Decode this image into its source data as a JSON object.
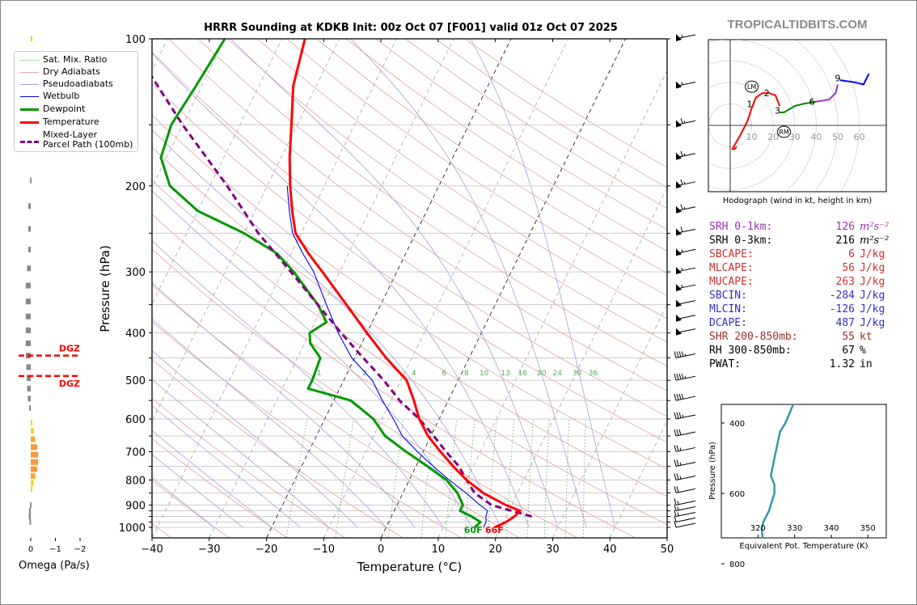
{
  "header": {
    "title": "HRRR Sounding at KDKB Init: 00z Oct 07 [F001] valid 01z Oct 07 2025",
    "brand": "TROPICALTIDBITS.COM"
  },
  "colors": {
    "temperature": "#ff0000",
    "dewpoint": "#009900",
    "wetbulb": "#0000ee",
    "parcel": "#800080",
    "dry_adiabat": "#e8a0a0",
    "pseudoadiabat": "#a0a0e0",
    "mix_ratio": "#5aa85a",
    "isotherm": "#999999",
    "theta_e": "#3399aa"
  },
  "legend": {
    "items": [
      {
        "label": "Sat. Mix. Ratio",
        "style": "dotted",
        "color": "#5aa85a"
      },
      {
        "label": "Dry Adiabats",
        "style": "thin",
        "color": "#e8a0a0"
      },
      {
        "label": "Pseudoadiabats",
        "style": "thin",
        "color": "#a0a0e0"
      },
      {
        "label": "Wetbulb",
        "style": "thin",
        "color": "#0000ee"
      },
      {
        "label": "Dewpoint",
        "style": "thick",
        "color": "#009900"
      },
      {
        "label": "Temperature",
        "style": "thick",
        "color": "#ff0000"
      },
      {
        "label": "Mixed-Layer",
        "label2": "Parcel Path (100mb)",
        "style": "dashed",
        "color": "#800080"
      }
    ]
  },
  "stats": [
    {
      "label": "SRH 0-1km:",
      "value": "126",
      "unit": "m²s⁻²",
      "color": "#9b30b0"
    },
    {
      "label": "SRH 0-3km:",
      "value": "216",
      "unit": "m²s⁻²",
      "color": "#000000"
    },
    {
      "label": "SBCAPE:",
      "value": "6",
      "unit": "J/kg",
      "color": "#d03030"
    },
    {
      "label": "MLCAPE:",
      "value": "56",
      "unit": "J/kg",
      "color": "#d03030"
    },
    {
      "label": "MUCAPE:",
      "value": "263",
      "unit": "J/kg",
      "color": "#d03030"
    },
    {
      "label": "SBCIN:",
      "value": "-284",
      "unit": "J/kg",
      "color": "#3030c8"
    },
    {
      "label": "MLCIN:",
      "value": "-126",
      "unit": "J/kg",
      "color": "#3030c8"
    },
    {
      "label": "DCAPE:",
      "value": "487",
      "unit": "J/kg",
      "color": "#3030c8"
    },
    {
      "label": "SHR 200-850mb:",
      "value": "55",
      "unit": "kt",
      "color": "#a03030"
    },
    {
      "label": "RH 300-850mb:",
      "value": "67",
      "unit": "%",
      "color": "#000000"
    },
    {
      "label": "PWAT:",
      "value": "1.32",
      "unit": "in",
      "color": "#000000"
    }
  ],
  "chart_data": [
    {
      "type": "line",
      "name": "skew-t",
      "title": "HRRR Sounding at KDKB Init: 00z Oct 07 [F001] valid 01z Oct 07 2025",
      "xlabel": "Temperature (°C)",
      "ylabel": "Pressure (hPa)",
      "xlim": [
        -40,
        50
      ],
      "ylim": [
        1050,
        100
      ],
      "xticks": [
        -40,
        -30,
        -20,
        -10,
        0,
        10,
        20,
        30,
        40,
        50
      ],
      "xtick_labels": [
        "−40",
        "−30",
        "−20",
        "−10",
        "0",
        "10",
        "20",
        "30",
        "40",
        "50"
      ],
      "yticks": [
        100,
        200,
        300,
        400,
        500,
        600,
        700,
        800,
        900,
        1000
      ],
      "ytick_labels": [
        "100",
        "200",
        "300",
        "400",
        "500",
        "600",
        "700",
        "800",
        "900",
        "1000"
      ],
      "minor_pressure_lines": [
        150,
        250,
        350,
        450,
        550,
        650,
        750,
        850,
        925,
        950,
        975
      ],
      "mix_ratio_labels": [
        "1",
        "2",
        "4",
        "6",
        "8",
        "10",
        "13",
        "16",
        "20",
        "24",
        "30",
        "36"
      ],
      "mix_ratio_values": [
        1,
        2,
        4,
        6,
        8,
        10,
        13,
        16,
        20,
        24,
        30,
        36
      ],
      "surface_labels": {
        "dewpoint": "60F",
        "temperature": "66F"
      },
      "series": [
        {
          "name": "Temperature",
          "pressure": [
            1000,
            975,
            950,
            925,
            900,
            850,
            800,
            750,
            700,
            650,
            600,
            550,
            500,
            450,
            400,
            350,
            300,
            275,
            250,
            225,
            200,
            175,
            150,
            125,
            100
          ],
          "temp": [
            19,
            20.5,
            21.5,
            22,
            19,
            14,
            10,
            6.5,
            3,
            -0.5,
            -3.5,
            -6,
            -9,
            -14.5,
            -20,
            -26,
            -33,
            -37,
            -41,
            -43.5,
            -46,
            -48.5,
            -51,
            -54,
            -56
          ]
        },
        {
          "name": "Dewpoint",
          "pressure": [
            1000,
            975,
            950,
            925,
            900,
            850,
            800,
            750,
            700,
            650,
            600,
            550,
            520,
            500,
            450,
            420,
            400,
            380,
            350,
            300,
            275,
            250,
            225,
            200,
            175,
            150,
            125,
            100
          ],
          "temp": [
            15.5,
            16,
            14,
            11.5,
            11.5,
            9.5,
            6.5,
            2,
            -3,
            -8,
            -11.5,
            -17,
            -25.5,
            -25.5,
            -26,
            -29,
            -30,
            -28,
            -31,
            -38,
            -42.5,
            -50,
            -60,
            -67,
            -71,
            -72,
            -71,
            -70
          ]
        },
        {
          "name": "Wetbulb",
          "pressure": [
            1000,
            975,
            950,
            925,
            900,
            850,
            800,
            750,
            700,
            650,
            600,
            550,
            500,
            450,
            400,
            350,
            300,
            275,
            250,
            225,
            200
          ],
          "temp": [
            17,
            17,
            16.5,
            16.3,
            14.5,
            11,
            7,
            3,
            -1,
            -5,
            -8,
            -11.5,
            -15,
            -20.5,
            -25,
            -29.5,
            -34.5,
            -38,
            -41.5,
            -44,
            -46.5
          ]
        },
        {
          "name": "Mixed-Layer Parcel Path (100mb)",
          "pressure": [
            950,
            925,
            900,
            850,
            800,
            750,
            700,
            650,
            600,
            550,
            500,
            450,
            400,
            350,
            300,
            250,
            200,
            150,
            100
          ],
          "temp": [
            24.5,
            20.5,
            16.5,
            12.5,
            10,
            7.5,
            4,
            0.5,
            -3.5,
            -8.5,
            -13,
            -18.5,
            -24.5,
            -31,
            -38.5,
            -47.5,
            -57,
            -70,
            -87
          ]
        }
      ]
    },
    {
      "type": "bar",
      "name": "omega",
      "xlabel": "Omega (Pa/s)",
      "xticks": [
        0,
        -1,
        -2
      ],
      "xtick_labels": [
        "0",
        "−1",
        "−2"
      ],
      "dgz_label": "DGZ",
      "dgz_pressures": [
        445,
        490
      ],
      "pressure": [
        100,
        125,
        195,
        220,
        245,
        270,
        295,
        320,
        345,
        370,
        395,
        420,
        445,
        470,
        495,
        520,
        545,
        570,
        610,
        635,
        660,
        685,
        710,
        735,
        760,
        785,
        810,
        835,
        900,
        925,
        950,
        975
      ],
      "values": [
        -0.02,
        -0.03,
        0.03,
        0.1,
        0.1,
        0.1,
        0.15,
        0.2,
        0.2,
        0.2,
        0.2,
        0.2,
        0.2,
        0.18,
        0.16,
        0.14,
        0.12,
        0.06,
        -0.05,
        -0.13,
        -0.18,
        -0.26,
        -0.3,
        -0.3,
        -0.26,
        -0.18,
        -0.12,
        -0.06,
        0.03,
        0.07,
        0.08,
        0.05
      ]
    },
    {
      "type": "line",
      "name": "hodograph",
      "caption": "Hodograph (wind in kt, height in km)",
      "ring_labels": [
        "10",
        "20",
        "30",
        "40",
        "50",
        "60"
      ],
      "ring_values": [
        10,
        20,
        30,
        40,
        50,
        60
      ],
      "height_labels": [
        "1",
        "2",
        "3",
        "6",
        "9"
      ],
      "markers": [
        {
          "label": "LM",
          "u": 10,
          "v": 18
        },
        {
          "label": "RM",
          "u": 25,
          "v": -3
        }
      ],
      "segments": [
        {
          "color": "#ff0000",
          "u": [
            3,
            2,
            1,
            5,
            8,
            10,
            12,
            15,
            18,
            21,
            23
          ],
          "v": [
            -10,
            -11,
            -11,
            -4,
            2,
            8,
            13,
            15,
            15,
            14,
            9
          ]
        },
        {
          "color": "#008800",
          "u": [
            23,
            25,
            30,
            34,
            40
          ],
          "v": [
            6,
            6,
            9,
            10,
            11
          ]
        },
        {
          "color": "#9933cc",
          "u": [
            40,
            46,
            49,
            50
          ],
          "v": [
            11,
            12,
            15,
            19
          ]
        },
        {
          "color": "#0000ff",
          "u": [
            51,
            58,
            62,
            64,
            64.5
          ],
          "v": [
            21,
            20,
            19,
            23,
            24
          ]
        }
      ],
      "height_points": [
        {
          "label": "1",
          "u": 9,
          "v": 10
        },
        {
          "label": "2",
          "u": 17,
          "v": 15
        },
        {
          "label": "3",
          "u": 22,
          "v": 7
        },
        {
          "label": "6",
          "u": 38,
          "v": 11
        },
        {
          "label": "9",
          "u": 50,
          "v": 22
        }
      ]
    },
    {
      "type": "line",
      "name": "theta-e",
      "xlabel": "Equivalent Pot. Temperature (K)",
      "ylabel": "Pressure (hPa)",
      "xlim": [
        310,
        355
      ],
      "ylim": [
        1000,
        300
      ],
      "xticks": [
        320,
        330,
        340,
        350
      ],
      "xtick_labels": [
        "320",
        "330",
        "340",
        "350"
      ],
      "yticks": [
        400,
        600,
        800
      ],
      "ytick_labels": [
        "400",
        "600",
        "800"
      ],
      "pressure": [
        1000,
        990,
        975,
        950,
        925,
        900,
        875,
        850,
        800,
        750,
        700,
        680,
        650,
        600,
        575,
        550,
        525,
        500,
        475,
        450,
        425,
        400,
        375,
        350,
        325,
        300
      ],
      "theta_e": [
        325.5,
        327.5,
        327.5,
        327.5,
        329,
        330.5,
        330.5,
        329.5,
        326,
        321.5,
        321,
        321.5,
        323,
        324.5,
        324.5,
        323.5,
        324,
        324.5,
        325,
        325.5,
        326,
        327.5,
        328.5,
        329.5,
        330.5,
        331.5
      ]
    }
  ],
  "barbs": {
    "pressure": [
      100,
      125,
      150,
      175,
      200,
      225,
      250,
      275,
      300,
      325,
      350,
      375,
      400,
      450,
      500,
      550,
      600,
      650,
      700,
      750,
      800,
      850,
      900,
      925,
      950,
      975,
      1000
    ],
    "speed_kt": [
      55,
      55,
      65,
      65,
      65,
      65,
      60,
      55,
      55,
      55,
      50,
      50,
      50,
      45,
      45,
      40,
      35,
      30,
      25,
      25,
      25,
      20,
      15,
      15,
      15,
      10,
      10
    ]
  }
}
